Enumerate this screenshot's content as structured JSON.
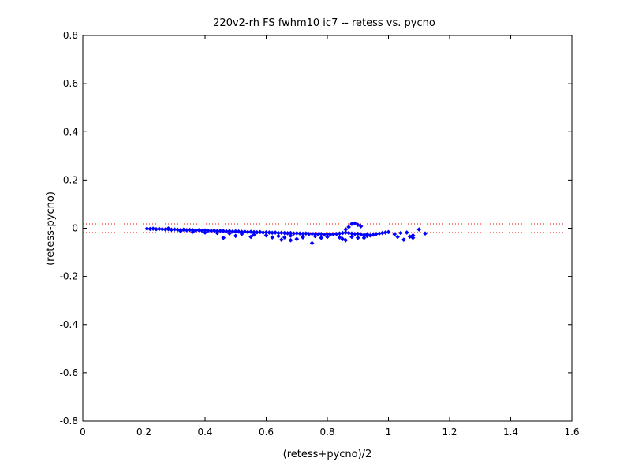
{
  "chart_data": {
    "type": "scatter",
    "title": "220v2-rh FS fwhm10 ic7 -- retess vs. pycno",
    "xlabel": "(retess+pycno)/2",
    "ylabel": "(retess-pycno)",
    "xlim": [
      0,
      1.6
    ],
    "ylim": [
      -0.8,
      0.8
    ],
    "xticks": [
      "0",
      "0.2",
      "0.4",
      "0.6",
      "0.8",
      "1",
      "1.2",
      "1.4",
      "1.6"
    ],
    "yticks": [
      "0.8",
      "0.6",
      "0.4",
      "0.2",
      "0",
      "-0.2",
      "-0.4",
      "-0.6",
      "-0.8"
    ],
    "grid": false,
    "legend": "none",
    "reference_lines": [
      {
        "y": 0.018,
        "style": "dotted",
        "color": "#ff0000"
      },
      {
        "y": -0.018,
        "style": "dotted",
        "color": "#ff0000"
      }
    ],
    "series": [
      {
        "color": "#0000ff",
        "marker": "diamond",
        "points": [
          [
            0.21,
            -0.002
          ],
          [
            0.22,
            -0.003
          ],
          [
            0.23,
            -0.002
          ],
          [
            0.24,
            -0.004
          ],
          [
            0.25,
            -0.003
          ],
          [
            0.26,
            -0.004
          ],
          [
            0.27,
            -0.005
          ],
          [
            0.28,
            -0.004
          ],
          [
            0.29,
            -0.006
          ],
          [
            0.3,
            -0.005
          ],
          [
            0.31,
            -0.006
          ],
          [
            0.32,
            -0.007
          ],
          [
            0.33,
            -0.006
          ],
          [
            0.34,
            -0.008
          ],
          [
            0.35,
            -0.007
          ],
          [
            0.36,
            -0.008
          ],
          [
            0.37,
            -0.009
          ],
          [
            0.38,
            -0.008
          ],
          [
            0.39,
            -0.01
          ],
          [
            0.4,
            -0.009
          ],
          [
            0.41,
            -0.01
          ],
          [
            0.42,
            -0.011
          ],
          [
            0.43,
            -0.01
          ],
          [
            0.44,
            -0.012
          ],
          [
            0.45,
            -0.011
          ],
          [
            0.46,
            -0.012
          ],
          [
            0.47,
            -0.013
          ],
          [
            0.48,
            -0.012
          ],
          [
            0.49,
            -0.014
          ],
          [
            0.5,
            -0.013
          ],
          [
            0.51,
            -0.014
          ],
          [
            0.52,
            -0.015
          ],
          [
            0.53,
            -0.014
          ],
          [
            0.54,
            -0.016
          ],
          [
            0.55,
            -0.015
          ],
          [
            0.56,
            -0.016
          ],
          [
            0.57,
            -0.017
          ],
          [
            0.58,
            -0.016
          ],
          [
            0.59,
            -0.018
          ],
          [
            0.6,
            -0.017
          ],
          [
            0.61,
            -0.018
          ],
          [
            0.62,
            -0.019
          ],
          [
            0.63,
            -0.018
          ],
          [
            0.64,
            -0.02
          ],
          [
            0.65,
            -0.019
          ],
          [
            0.66,
            -0.02
          ],
          [
            0.67,
            -0.021
          ],
          [
            0.68,
            -0.02
          ],
          [
            0.69,
            -0.022
          ],
          [
            0.7,
            -0.021
          ],
          [
            0.71,
            -0.022
          ],
          [
            0.72,
            -0.023
          ],
          [
            0.73,
            -0.022
          ],
          [
            0.74,
            -0.024
          ],
          [
            0.75,
            -0.023
          ],
          [
            0.76,
            -0.024
          ],
          [
            0.77,
            -0.025
          ],
          [
            0.78,
            -0.024
          ],
          [
            0.79,
            -0.026
          ],
          [
            0.8,
            -0.025
          ],
          [
            0.81,
            -0.026
          ],
          [
            0.82,
            -0.025
          ],
          [
            0.83,
            -0.024
          ],
          [
            0.84,
            -0.022
          ],
          [
            0.85,
            -0.02
          ],
          [
            0.86,
            -0.018
          ],
          [
            0.87,
            -0.02
          ],
          [
            0.88,
            -0.022
          ],
          [
            0.89,
            -0.024
          ],
          [
            0.9,
            -0.023
          ],
          [
            0.91,
            -0.026
          ],
          [
            0.92,
            -0.028
          ],
          [
            0.93,
            -0.025
          ],
          [
            0.94,
            -0.03
          ],
          [
            0.95,
            -0.027
          ],
          [
            0.96,
            -0.024
          ],
          [
            0.97,
            -0.022
          ],
          [
            0.98,
            -0.02
          ],
          [
            0.99,
            -0.018
          ],
          [
            1.0,
            -0.016
          ],
          [
            0.86,
            -0.005
          ],
          [
            0.87,
            0.005
          ],
          [
            0.88,
            0.018
          ],
          [
            0.89,
            0.02
          ],
          [
            0.9,
            0.014
          ],
          [
            0.91,
            0.008
          ],
          [
            0.28,
            -0.001
          ],
          [
            0.32,
            -0.012
          ],
          [
            0.36,
            -0.015
          ],
          [
            0.4,
            -0.018
          ],
          [
            0.44,
            -0.02
          ],
          [
            0.48,
            -0.022
          ],
          [
            0.52,
            -0.024
          ],
          [
            0.56,
            -0.027
          ],
          [
            0.6,
            -0.03
          ],
          [
            0.64,
            -0.033
          ],
          [
            0.68,
            -0.031
          ],
          [
            0.72,
            -0.035
          ],
          [
            0.76,
            -0.033
          ],
          [
            0.8,
            -0.036
          ],
          [
            0.84,
            -0.038
          ],
          [
            0.88,
            -0.036
          ],
          [
            0.92,
            -0.04
          ],
          [
            0.46,
            -0.04
          ],
          [
            0.5,
            -0.032
          ],
          [
            0.55,
            -0.036
          ],
          [
            0.65,
            -0.048
          ],
          [
            0.66,
            -0.038
          ],
          [
            0.7,
            -0.045
          ],
          [
            0.72,
            -0.038
          ],
          [
            0.75,
            -0.062
          ],
          [
            0.78,
            -0.04
          ],
          [
            0.85,
            -0.045
          ],
          [
            0.9,
            -0.04
          ],
          [
            0.93,
            -0.032
          ],
          [
            0.62,
            -0.038
          ],
          [
            0.68,
            -0.05
          ],
          [
            0.86,
            -0.05
          ],
          [
            1.02,
            -0.025
          ],
          [
            1.04,
            -0.02
          ],
          [
            1.05,
            -0.048
          ],
          [
            1.06,
            -0.018
          ],
          [
            1.07,
            -0.035
          ],
          [
            1.08,
            -0.03
          ],
          [
            1.1,
            -0.005
          ],
          [
            1.12,
            -0.022
          ],
          [
            1.03,
            -0.036
          ],
          [
            1.08,
            -0.04
          ]
        ]
      }
    ]
  }
}
